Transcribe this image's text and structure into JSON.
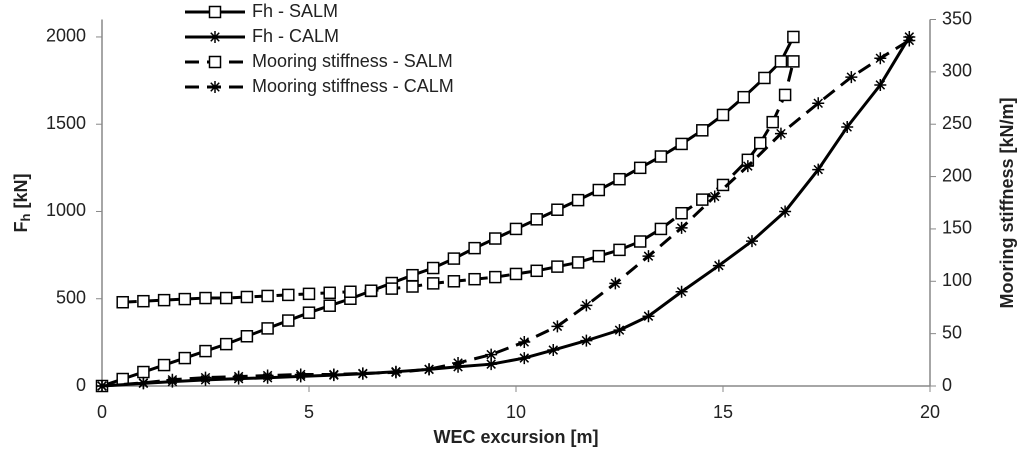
{
  "chart_data": {
    "type": "line",
    "xlabel": "WEC excursion [m]",
    "ylabel_parts": [
      "F",
      "h",
      " [kN]"
    ],
    "y2label": "Mooring stiffness [kN/m]",
    "xlim": [
      0,
      20
    ],
    "xticks": [
      0,
      5,
      10,
      15,
      20
    ],
    "ylim": [
      0,
      2100
    ],
    "yticks": [
      0,
      500,
      1000,
      1500,
      2000
    ],
    "y2lim": [
      0,
      350
    ],
    "y2ticks": [
      0,
      50,
      100,
      150,
      200,
      250,
      300,
      350
    ],
    "grid": false,
    "legend": "top-left",
    "series": [
      {
        "name": "Fh - SALM",
        "color": "#000000",
        "dash": false,
        "marker": "square",
        "x": [
          0,
          0.5,
          1,
          1.5,
          2,
          2.5,
          3,
          3.5,
          4,
          4.5,
          5,
          5.5,
          6,
          6.5,
          7,
          7.5,
          8,
          8.5,
          9,
          9.5,
          10,
          10.5,
          11,
          11.5,
          12,
          12.5,
          13,
          13.5,
          14,
          14.5,
          15,
          15.5,
          16,
          16.4,
          16.7
        ],
        "values": [
          0,
          40,
          80,
          120,
          160,
          200,
          240,
          285,
          330,
          375,
          420,
          460,
          500,
          545,
          590,
          635,
          676,
          730,
          790,
          845,
          900,
          955,
          1010,
          1065,
          1123,
          1185,
          1250,
          1315,
          1387,
          1465,
          1553,
          1655,
          1765,
          1860,
          2000
        ]
      },
      {
        "name": "Fh - CALM",
        "color": "#000000",
        "dash": false,
        "marker": "asterisk",
        "x": [
          0,
          1,
          1.7,
          2.5,
          3.3,
          4,
          4.8,
          5.6,
          6.3,
          7.1,
          7.9,
          8.6,
          9.4,
          10.2,
          10.9,
          11.7,
          12.5,
          13.2,
          14,
          14.9,
          15.7,
          16.5,
          17.3,
          18,
          18.8,
          19.5
        ],
        "values": [
          0,
          15,
          25,
          35,
          42,
          47,
          55,
          62,
          70,
          82,
          95,
          110,
          125,
          160,
          206,
          260,
          320,
          400,
          540,
          690,
          830,
          1000,
          1240,
          1484,
          1725,
          2000
        ]
      },
      {
        "name": "Mooring stiffness  - SALM",
        "color": "#000000",
        "dash": true,
        "marker": "square",
        "axis": "y2",
        "x": [
          0.5,
          1,
          1.5,
          2,
          2.5,
          3,
          3.5,
          4,
          4.5,
          5,
          5.5,
          6,
          6.5,
          7,
          7.5,
          8,
          8.5,
          9,
          9.5,
          10,
          10.5,
          11,
          11.5,
          12,
          12.5,
          13,
          13.5,
          14,
          14.5,
          15,
          15.6,
          15.9,
          16.2,
          16.5,
          16.7
        ],
        "values": [
          80,
          81,
          82,
          83,
          84,
          84,
          85,
          86,
          87,
          88,
          89,
          90,
          91,
          93,
          95,
          98,
          100,
          102,
          104,
          107,
          110,
          114,
          118,
          124,
          130,
          138,
          150,
          165,
          178,
          192,
          216,
          232,
          252,
          278,
          310
        ]
      },
      {
        "name": "Mooring stiffness - CALM",
        "color": "#000000",
        "dash": true,
        "marker": "asterisk",
        "axis": "y2",
        "x": [
          0,
          1,
          1.7,
          2.5,
          3.3,
          4,
          4.8,
          5.6,
          6.3,
          7.1,
          7.9,
          8.6,
          9.4,
          10.2,
          11,
          11.7,
          12.4,
          13.2,
          14,
          14.8,
          15.6,
          16.4,
          17.3,
          18.1,
          18.8,
          19.5
        ],
        "values": [
          0,
          3,
          6,
          8,
          9,
          10,
          11,
          11,
          12,
          13,
          16,
          22,
          30,
          42,
          57,
          77,
          98,
          124,
          151,
          181,
          210,
          241,
          270,
          295,
          313,
          330
        ]
      }
    ]
  }
}
